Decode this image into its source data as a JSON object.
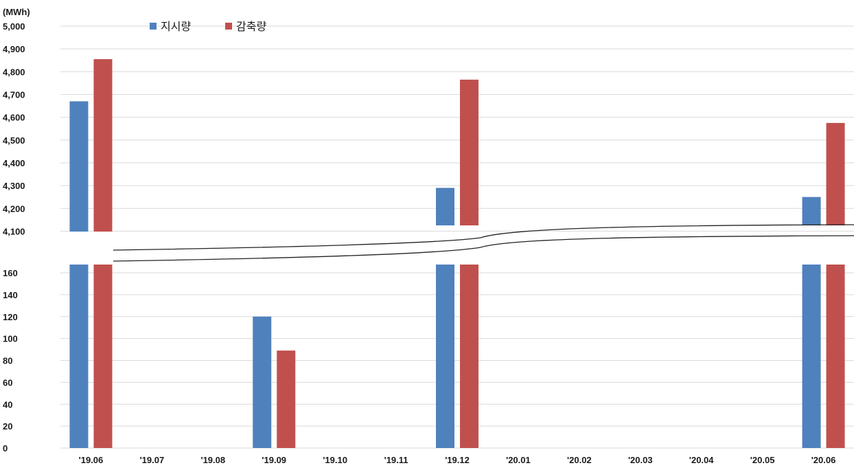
{
  "chart_data": {
    "type": "bar",
    "unit_label": "(MWh)",
    "categories": [
      "'19.06",
      "'19.07",
      "'19.08",
      "'19.09",
      "'19.10",
      "'19.11",
      "'19.12",
      "'20.01",
      "'20.02",
      "'20.03",
      "'20.04",
      "'20.05",
      "'20.06"
    ],
    "series": [
      {
        "name": "지시량",
        "color": "#4f81bd",
        "values": [
          4670,
          0,
          0,
          120,
          0,
          0,
          4290,
          0,
          0,
          0,
          0,
          0,
          4250
        ]
      },
      {
        "name": "감축량",
        "color": "#c0504d",
        "values": [
          4855,
          0,
          0,
          89,
          0,
          0,
          4765,
          0,
          0,
          0,
          0,
          0,
          4575
        ]
      }
    ],
    "axis_break": true,
    "upper_axis": {
      "ylim": [
        4050,
        5000
      ],
      "ticks": [
        "4,100",
        "4,200",
        "4,300",
        "4,400",
        "4,500",
        "4,600",
        "4,700",
        "4,800",
        "4,900",
        "5,000"
      ]
    },
    "lower_axis": {
      "ylim": [
        0,
        168
      ],
      "ticks": [
        "0",
        "20",
        "40",
        "60",
        "80",
        "100",
        "120",
        "140",
        "160"
      ]
    },
    "grid": true,
    "legend_position": "top-left"
  }
}
